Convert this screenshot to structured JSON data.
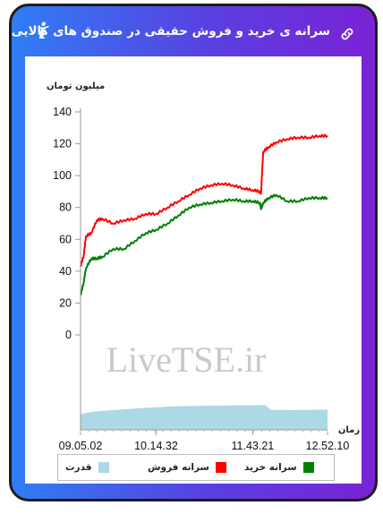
{
  "header": {
    "title": "سرانه ی خرید و فروش حقیقی در صندوق های کالایی",
    "info_icon": "info-icon",
    "link_icon": "link-icon",
    "info_glyph": "i"
  },
  "colors": {
    "gradient_start": "#2f7df6",
    "gradient_end": "#7a22d6",
    "sell": "#ff0000",
    "buy": "#008000",
    "power": "#add8e6"
  },
  "watermark": "LiveTSE.ir",
  "chart_data": {
    "type": "line",
    "ylabel": "میلیون تومان",
    "xlabel": "زمان",
    "ylim": [
      0,
      140
    ],
    "yticks": [
      0,
      20,
      40,
      60,
      80,
      100,
      120,
      140
    ],
    "x_ticks": [
      "09.05.02",
      "10.14.32",
      "11.43.21",
      "12.52.10"
    ],
    "x_range": [
      "09.05.02",
      "12.52.10"
    ],
    "series": [
      {
        "name": "سرانه فروش",
        "color": "#ff0000",
        "x": [
          "09.05.02",
          "09.08",
          "09.10",
          "09.15",
          "09.20",
          "09.25",
          "09.35",
          "09.45",
          "09.55",
          "10.05",
          "10.14.32",
          "10.25",
          "10.35",
          "10.45",
          "10.55",
          "11.05",
          "11.15",
          "11.25",
          "11.35",
          "11.43.21",
          "11.50",
          "11.51",
          "11.53",
          "11.58",
          "12.05",
          "12.15",
          "12.25",
          "12.35",
          "12.45",
          "12.52.10"
        ],
        "values": [
          43,
          50,
          62,
          64,
          72,
          73,
          70,
          72,
          73,
          76,
          76,
          80,
          84,
          88,
          92,
          94,
          95,
          94,
          92,
          91,
          90,
          89,
          115,
          118,
          121,
          123,
          124,
          124,
          125,
          125
        ]
      },
      {
        "name": "سرانه خرید",
        "color": "#008000",
        "x": [
          "09.05.02",
          "09.08",
          "09.10",
          "09.15",
          "09.20",
          "09.25",
          "09.35",
          "09.45",
          "09.55",
          "10.05",
          "10.14.32",
          "10.25",
          "10.35",
          "10.45",
          "10.55",
          "11.05",
          "11.15",
          "11.25",
          "11.35",
          "11.43.21",
          "11.50",
          "11.51",
          "11.53",
          "11.58",
          "12.05",
          "12.15",
          "12.25",
          "12.35",
          "12.45",
          "12.52.10"
        ],
        "values": [
          25,
          33,
          42,
          48,
          48,
          49,
          54,
          54,
          59,
          64,
          66,
          70,
          75,
          80,
          82,
          83,
          84,
          85,
          84,
          84,
          83,
          79,
          83,
          86,
          88,
          84,
          84,
          86,
          86,
          86
        ]
      },
      {
        "name": "قدرت",
        "color": "#add8e6",
        "type": "area",
        "x": [
          "09.05.02",
          "09.10",
          "09.20",
          "09.40",
          "10.00",
          "10.14.32",
          "10.30",
          "11.00",
          "11.30",
          "11.43.21",
          "11.55",
          "12.00",
          "12.20",
          "12.40",
          "12.52.10"
        ],
        "values": [
          -50,
          -49,
          -48,
          -47,
          -46,
          -45.5,
          -44.8,
          -44.5,
          -44.2,
          -44.2,
          -44,
          -47,
          -47.2,
          -47,
          -47
        ]
      }
    ],
    "legend": [
      "قدرت",
      "سرانه فروش",
      "سرانه خرید"
    ],
    "legend_position": "bottom",
    "grid": false
  }
}
